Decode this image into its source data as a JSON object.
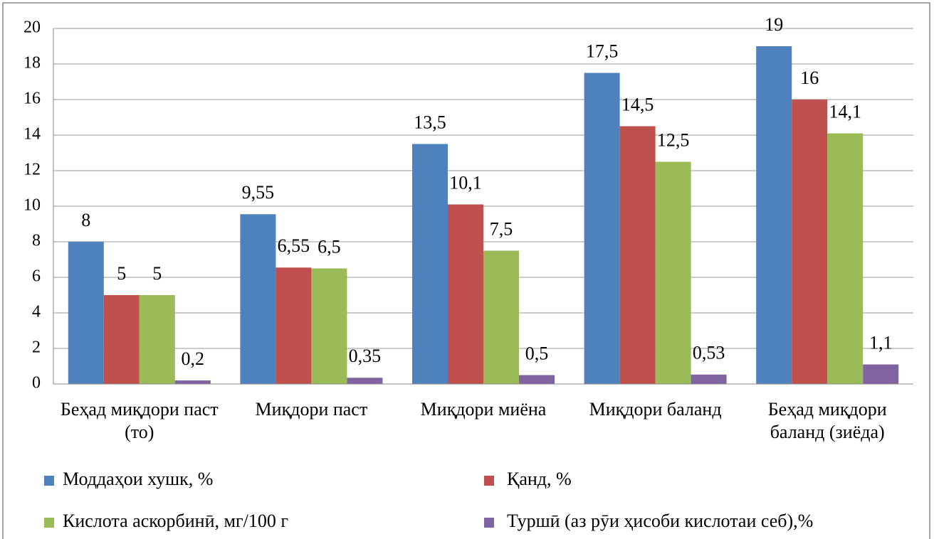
{
  "chart_data": {
    "type": "bar",
    "categories": [
      "Беҳад миқдори паст (то)",
      "Миқдори паст",
      "Миқдори миёна",
      "Миқдори баланд",
      "Беҳад миқдори баланд (зиёда)"
    ],
    "series": [
      {
        "name": "Моддаҳои хушк, %",
        "color": "#4f81bd",
        "values": [
          8,
          9.55,
          13.5,
          17.5,
          19
        ],
        "value_labels": [
          "8",
          "9,55",
          "13,5",
          "17,5",
          "19"
        ]
      },
      {
        "name": "Қанд, %",
        "color": "#c0504d",
        "values": [
          5,
          6.55,
          10.1,
          14.5,
          16
        ],
        "value_labels": [
          "5",
          "6,55",
          "10,1",
          "14,5",
          "16"
        ]
      },
      {
        "name": "Кислота аскорбинӣ, мг/100 г",
        "color": "#9bbb59",
        "values": [
          5,
          6.5,
          7.5,
          12.5,
          14.1
        ],
        "value_labels": [
          "5",
          "6,5",
          "7,5",
          "12,5",
          "14,1"
        ]
      },
      {
        "name": "Туршӣ (аз рӯи ҳисоби кислотаи себ),%",
        "color": "#8064a2",
        "values": [
          0.2,
          0.35,
          0.5,
          0.53,
          1.1
        ],
        "value_labels": [
          "0,2",
          "0,35",
          "0,5",
          "0,53",
          "1,1"
        ]
      }
    ],
    "ylim": [
      0,
      20
    ],
    "yticks": [
      0,
      2,
      4,
      6,
      8,
      10,
      12,
      14,
      16,
      18,
      20
    ],
    "grid": true
  }
}
